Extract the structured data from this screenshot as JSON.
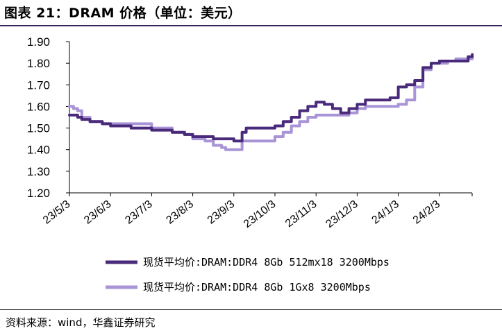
{
  "page": {
    "title": "图表 21：DRAM 价格（单位：美元）",
    "source": "资料来源：wind，华鑫证券研究"
  },
  "colors": {
    "series1": "#4a2a7a",
    "series2": "#a894d6",
    "axis": "#000000"
  },
  "chart_data": {
    "type": "line",
    "title": "DRAM 价格（单位：美元）",
    "xlabel": "",
    "ylabel": "",
    "ylim": [
      1.2,
      1.9
    ],
    "yticks": [
      "1.20",
      "1.30",
      "1.40",
      "1.50",
      "1.60",
      "1.70",
      "1.80",
      "1.90"
    ],
    "ytick_values": [
      1.2,
      1.3,
      1.4,
      1.5,
      1.6,
      1.7,
      1.8,
      1.9
    ],
    "xlim": [
      0,
      10
    ],
    "x_tick_labels": [
      "23/5/3",
      "23/6/3",
      "23/7/3",
      "23/8/3",
      "23/9/3",
      "23/10/3",
      "23/11/3",
      "23/12/3",
      "24/1/3",
      "24/2/3"
    ],
    "x_tick_positions": [
      0,
      1,
      2,
      3,
      4,
      5,
      6,
      7,
      8,
      9
    ],
    "series": [
      {
        "name": "现货平均价:DRAM:DDR4 8Gb 512mx18 3200Mbps",
        "x": [
          0.0,
          0.2,
          0.3,
          0.5,
          0.8,
          1.0,
          1.5,
          2.0,
          2.5,
          2.8,
          3.0,
          3.5,
          3.8,
          4.0,
          4.1,
          4.2,
          4.3,
          4.5,
          4.8,
          5.0,
          5.2,
          5.4,
          5.6,
          5.8,
          6.0,
          6.2,
          6.4,
          6.6,
          6.8,
          7.0,
          7.2,
          7.4,
          7.6,
          7.8,
          8.0,
          8.2,
          8.4,
          8.6,
          8.8,
          9.0,
          9.2,
          9.4,
          9.6,
          9.7,
          9.8
        ],
        "values": [
          1.56,
          1.55,
          1.54,
          1.53,
          1.52,
          1.51,
          1.5,
          1.49,
          1.48,
          1.47,
          1.46,
          1.45,
          1.45,
          1.44,
          1.44,
          1.48,
          1.5,
          1.5,
          1.5,
          1.51,
          1.53,
          1.55,
          1.58,
          1.6,
          1.62,
          1.61,
          1.59,
          1.57,
          1.59,
          1.61,
          1.63,
          1.63,
          1.63,
          1.64,
          1.69,
          1.7,
          1.72,
          1.78,
          1.8,
          1.81,
          1.81,
          1.81,
          1.81,
          1.83,
          1.84
        ]
      },
      {
        "name": "现货平均价:DRAM:DDR4 8Gb 1Gx8 3200Mbps",
        "x": [
          0.0,
          0.1,
          0.2,
          0.3,
          0.5,
          0.8,
          1.0,
          1.5,
          2.0,
          2.5,
          2.8,
          3.0,
          3.3,
          3.5,
          3.7,
          3.8,
          4.0,
          4.2,
          4.5,
          4.8,
          5.0,
          5.2,
          5.4,
          5.6,
          5.8,
          6.0,
          6.2,
          6.4,
          6.6,
          6.8,
          7.0,
          7.2,
          7.4,
          7.6,
          7.8,
          8.0,
          8.2,
          8.4,
          8.6,
          8.8,
          9.0,
          9.2,
          9.4,
          9.6,
          9.8
        ],
        "values": [
          1.6,
          1.59,
          1.58,
          1.55,
          1.53,
          1.52,
          1.52,
          1.52,
          1.5,
          1.48,
          1.47,
          1.45,
          1.44,
          1.42,
          1.41,
          1.4,
          1.4,
          1.44,
          1.44,
          1.44,
          1.46,
          1.48,
          1.51,
          1.53,
          1.55,
          1.56,
          1.56,
          1.56,
          1.56,
          1.57,
          1.59,
          1.6,
          1.6,
          1.6,
          1.6,
          1.61,
          1.63,
          1.69,
          1.77,
          1.8,
          1.8,
          1.81,
          1.82,
          1.82,
          1.83
        ]
      }
    ],
    "legend": [
      "现货平均价:DRAM:DDR4 8Gb 512mx18 3200Mbps",
      "现货平均价:DRAM:DDR4 8Gb 1Gx8 3200Mbps"
    ],
    "legend_position": "bottom",
    "grid": false
  }
}
